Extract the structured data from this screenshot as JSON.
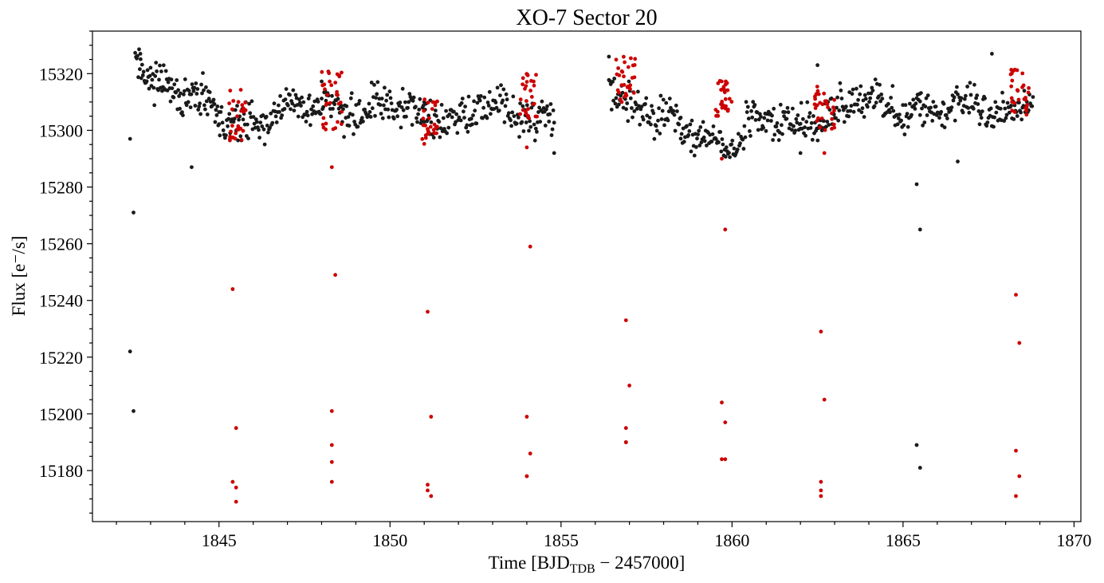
{
  "chart_data": {
    "type": "scatter",
    "title": "XO-7 Sector 20",
    "xlabel": {
      "prefix": "Time [BJD",
      "subscript": "TDB",
      "suffix": " − 2457000]"
    },
    "ylabel": "Flux [e⁻/s]",
    "xlim": [
      1841.3,
      1870.2
    ],
    "ylim": [
      15162,
      15335
    ],
    "xticks": [
      1845,
      1850,
      1855,
      1860,
      1865,
      1870
    ],
    "xtick_labels": [
      "1845",
      "1850",
      "1855",
      "1860",
      "1865",
      "1870"
    ],
    "yticks": [
      15180,
      15200,
      15220,
      15240,
      15260,
      15280,
      15300,
      15320
    ],
    "ytick_labels": [
      "15180",
      "15200",
      "15220",
      "15240",
      "15260",
      "15280",
      "15300",
      "15320"
    ],
    "grid": false,
    "legend": "none",
    "colors": {
      "baseline": "#1a1a1a",
      "transit": "#cc0000"
    },
    "series": [
      {
        "role": "baseline",
        "color": "#1a1a1a",
        "outliers": [
          [
            1842.4,
            15297
          ],
          [
            1842.5,
            15271
          ],
          [
            1842.4,
            15222
          ],
          [
            1842.5,
            15201
          ],
          [
            1844.2,
            15287
          ],
          [
            1865.4,
            15281
          ],
          [
            1865.5,
            15265
          ],
          [
            1865.4,
            15189
          ],
          [
            1865.5,
            15181
          ],
          [
            1854.8,
            15292
          ],
          [
            1862.0,
            15292
          ],
          [
            1866.6,
            15289
          ],
          [
            1867.6,
            15327
          ],
          [
            1856.4,
            15326
          ],
          [
            1842.7,
            15327
          ],
          [
            1862.5,
            15323
          ]
        ],
        "segments": [
          {
            "x": [
              1842.55,
              1845.0
            ],
            "base": [
              15325,
              15303
            ],
            "amp": 4,
            "n": 110
          },
          {
            "x": [
              1845.0,
              1848.0
            ],
            "base": [
              15303,
              15309
            ],
            "amp": 4,
            "n": 120
          },
          {
            "x": [
              1848.0,
              1851.0
            ],
            "base": [
              15310,
              15306
            ],
            "amp": 4,
            "n": 120
          },
          {
            "x": [
              1851.0,
              1854.8
            ],
            "base": [
              15306,
              15306
            ],
            "amp": 4,
            "n": 150
          },
          {
            "x": [
              1856.4,
              1858.5
            ],
            "base": [
              15316,
              15298
            ],
            "amp": 4,
            "n": 80
          },
          {
            "x": [
              1858.5,
              1862.0
            ],
            "base": [
              15298,
              15302
            ],
            "amp": 4,
            "n": 140
          },
          {
            "x": [
              1862.0,
              1865.5
            ],
            "base": [
              15305,
              15310
            ],
            "amp": 4,
            "n": 140
          },
          {
            "x": [
              1865.5,
              1868.8
            ],
            "base": [
              15306,
              15310
            ],
            "amp": 4,
            "n": 130
          }
        ]
      },
      {
        "role": "transit",
        "color": "#cc0000",
        "points": [
          [
            1845.4,
            15244
          ],
          [
            1845.5,
            15195
          ],
          [
            1845.4,
            15176
          ],
          [
            1845.5,
            15174
          ],
          [
            1845.5,
            15169
          ],
          [
            1848.3,
            15287
          ],
          [
            1848.4,
            15249
          ],
          [
            1848.3,
            15201
          ],
          [
            1848.3,
            15189
          ],
          [
            1848.3,
            15183
          ],
          [
            1848.3,
            15176
          ],
          [
            1851.1,
            15236
          ],
          [
            1851.2,
            15199
          ],
          [
            1851.1,
            15175
          ],
          [
            1851.1,
            15173
          ],
          [
            1851.2,
            15171
          ],
          [
            1854.0,
            15294
          ],
          [
            1854.1,
            15259
          ],
          [
            1854.0,
            15199
          ],
          [
            1854.1,
            15186
          ],
          [
            1854.0,
            15178
          ],
          [
            1854.0,
            15178
          ],
          [
            1856.9,
            15233
          ],
          [
            1857.0,
            15210
          ],
          [
            1856.9,
            15195
          ],
          [
            1856.9,
            15190
          ],
          [
            1856.9,
            15190
          ],
          [
            1859.7,
            15290
          ],
          [
            1859.8,
            15265
          ],
          [
            1859.7,
            15204
          ],
          [
            1859.8,
            15197
          ],
          [
            1859.7,
            15184
          ],
          [
            1859.8,
            15184
          ],
          [
            1862.6,
            15229
          ],
          [
            1862.7,
            15205
          ],
          [
            1862.6,
            15176
          ],
          [
            1862.6,
            15173
          ],
          [
            1862.6,
            15171
          ],
          [
            1862.7,
            15292
          ],
          [
            1868.3,
            15242
          ],
          [
            1868.4,
            15225
          ],
          [
            1868.3,
            15187
          ],
          [
            1868.4,
            15178
          ],
          [
            1868.3,
            15171
          ]
        ],
        "clusters": [
          {
            "x": [
              1845.3,
              1845.8
            ],
            "y": [
              15296,
              15315
            ],
            "n": 28
          },
          {
            "x": [
              1848.0,
              1848.6
            ],
            "y": [
              15300,
              15321
            ],
            "n": 32
          },
          {
            "x": [
              1850.9,
              1851.4
            ],
            "y": [
              15295,
              15311
            ],
            "n": 28
          },
          {
            "x": [
              1853.8,
              1854.3
            ],
            "y": [
              15304,
              15320
            ],
            "n": 28
          },
          {
            "x": [
              1856.6,
              1857.2
            ],
            "y": [
              15310,
              15326
            ],
            "n": 30
          },
          {
            "x": [
              1859.5,
              1860.0
            ],
            "y": [
              15305,
              15318
            ],
            "n": 30
          },
          {
            "x": [
              1862.4,
              1863.0
            ],
            "y": [
              15300,
              15316
            ],
            "n": 30
          },
          {
            "x": [
              1868.1,
              1868.7
            ],
            "y": [
              15305,
              15322
            ],
            "n": 30
          }
        ]
      }
    ]
  }
}
